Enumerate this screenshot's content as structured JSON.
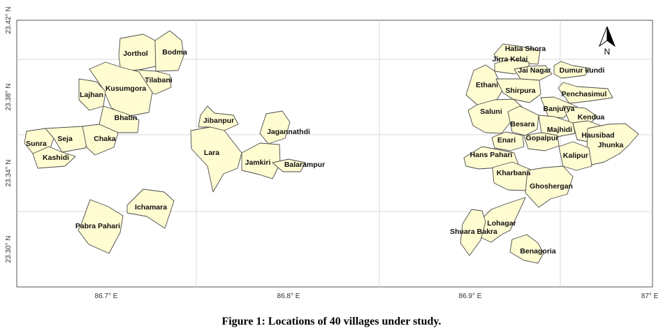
{
  "caption": "Figure 1:  Locations of 40 villages under study.",
  "map": {
    "lat_ticks": [
      "23.42° N",
      "23.38° N",
      "23.34° N",
      "23.30° N"
    ],
    "lon_ticks": [
      "86.7° E",
      "86.8° E",
      "86.9° E",
      "87° E"
    ],
    "north_label": "N",
    "villages": [
      "Jorthol",
      "Bodma",
      "Tilabani",
      "Kusumgora",
      "Lajhan",
      "Bhatin",
      "Sunra",
      "Seja",
      "Chaka",
      "Kashidi",
      "Jibanpur",
      "Lara",
      "Jagannathdi",
      "Jamkiri",
      "Balarampur",
      "Ichamara",
      "Pabra Pahari",
      "Hatia Shora",
      "Jirra Kelai",
      "Jai Nagar",
      "Dumur kundi",
      "Ethani",
      "Shirpura",
      "Penchasimul",
      "Saluni",
      "Banjurya",
      "Kendua",
      "Besara",
      "Majhidi",
      "Hausibad",
      "Jhunka",
      "Enari",
      "Gopalpur",
      "Hans Pahari",
      "Kalipur",
      "Kharbana",
      "Ghoshergan",
      "Lohagar",
      "Shuara Bakra",
      "Benagoria"
    ]
  },
  "colors": {
    "polygon_fill": "#fffcd2",
    "polygon_stroke": "#4a4a4a",
    "grid": "#d8d8d8"
  }
}
